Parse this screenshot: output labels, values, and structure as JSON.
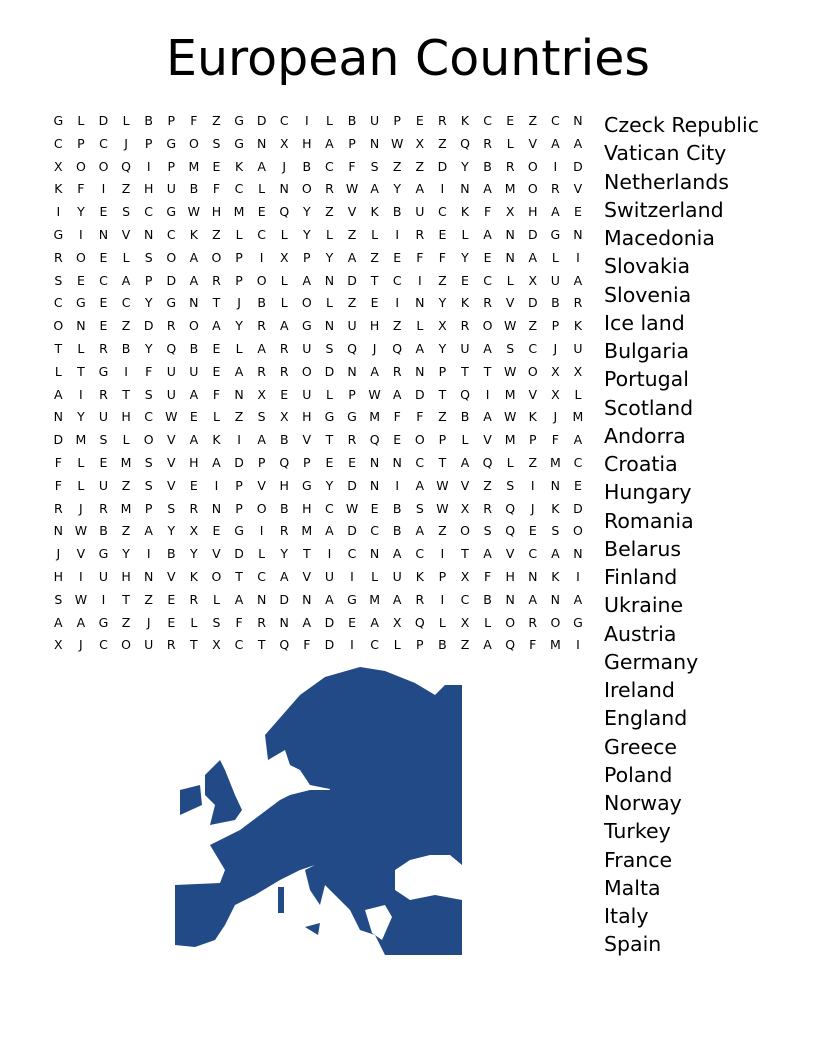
{
  "title": "European Countries",
  "grid_rows": [
    "GLDLBPFZGDCILBUPERKCEZCN",
    "CPCJPGOSGNXHAPNWXZQRLVAA",
    "XOOQIPMEKAJBCFSZZDYBROID",
    "KFIZHUBFCLNORWAYAINAMORV",
    "IYESCGWHMEQYZVKBUCKFXHAE",
    "GINVNCKZLCLYLZLIRELANDGN",
    "ROELSOAOPIXPYAZEFFYENALI",
    "SECAPDARPOLANDTCIZECLXUA",
    "CGECYGNTJBLOLZEINYKRVDBR",
    "ONEZDROAYRAGNUHZLXROWZPK",
    "TLRBYQBELARUSQJQAYUASCJU",
    "LTGIFUUEARRODNARNPTTWOXX",
    "AIRTSUAFNXEULPWADTQIMVXL",
    "NYUHCWELZSXHGGMFFZBAWKJM",
    "DMSLOVAKIABVTRQEOPLVMPFA",
    "FLEMSVHADPQPEENNCTAQLZMC",
    "FLUZSVEIPVHGYDNIAWVZSINE",
    "RJRMPSRNPOBHCWEBSWXRQJKD",
    "NWBZAYXEGIRMADCBAZOSQESO",
    "JVGYIBYVDLYTICNACITAVCAN",
    "HIUHNVKOTCAVUILUKPXFHNKI",
    "SWITZERLANDNAGMARICBNANA",
    "AAGZJELSFRNADEAXQLXLOROG",
    "XJCOURTXCTQFDICLPBZAQFMI"
  ],
  "words": [
    "Czeck Republic",
    "Vatican City",
    "Netherlands",
    "Switzerland",
    "Macedonia",
    "Slovakia",
    "Slovenia",
    "Ice land",
    "Bulgaria",
    "Portugal",
    "Scotland",
    "Andorra",
    "Croatia",
    "Hungary",
    "Romania",
    "Belarus",
    "Finland",
    "Ukraine",
    "Austria",
    "Germany",
    "Ireland",
    "England",
    "Greece",
    "Poland",
    "Norway",
    "Turkey",
    "France",
    "Malta",
    "Italy",
    "Spain"
  ],
  "map_color": "#214a86"
}
